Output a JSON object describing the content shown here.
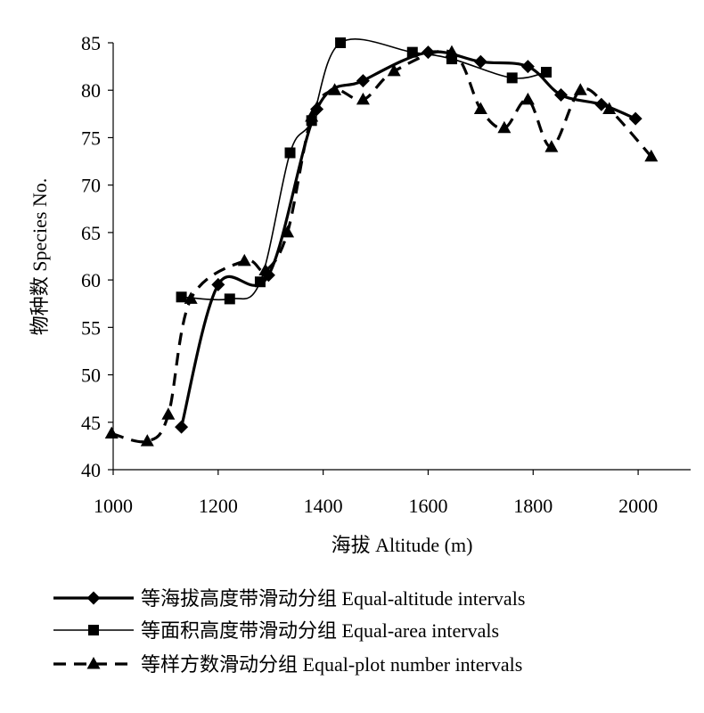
{
  "chart_data": {
    "type": "line",
    "title": "",
    "xlabel": "海拔 Altitude (m)",
    "ylabel": "物种数 Species No.",
    "xlim": [
      1000,
      2100
    ],
    "ylim": [
      40,
      85
    ],
    "xticks": [
      1000,
      1200,
      1400,
      1600,
      1800,
      2000
    ],
    "yticks": [
      40,
      45,
      50,
      55,
      60,
      65,
      70,
      75,
      80,
      85
    ],
    "grid": false,
    "legend_position": "bottom",
    "series": [
      {
        "name": "等海拔高度带滑动分组 Equal-altitude intervals",
        "marker": "diamond",
        "line_style": "solid-thick",
        "points": [
          [
            1130,
            44.5
          ],
          [
            1200,
            59.5
          ],
          [
            1296,
            60.5
          ],
          [
            1388,
            78
          ],
          [
            1476,
            81
          ],
          [
            1600,
            84
          ],
          [
            1700,
            83
          ],
          [
            1790,
            82.5
          ],
          [
            1853,
            79.5
          ],
          [
            1930,
            78.5
          ],
          [
            1995,
            77
          ]
        ]
      },
      {
        "name": "等面积高度带滑动分组 Equal-area intervals",
        "marker": "square",
        "line_style": "solid-thin",
        "points": [
          [
            1130,
            58.2
          ],
          [
            1222,
            58
          ],
          [
            1280,
            59.8
          ],
          [
            1337,
            73.4
          ],
          [
            1378,
            76.8
          ],
          [
            1433,
            85
          ],
          [
            1570,
            84
          ],
          [
            1645,
            83.3
          ],
          [
            1760,
            81.3
          ],
          [
            1825,
            81.9
          ]
        ]
      },
      {
        "name": "等样方数滑动分组 Equal-plot number intervals",
        "marker": "triangle",
        "line_style": "dashed-thick",
        "points": [
          [
            997,
            43.8
          ],
          [
            1065,
            43
          ],
          [
            1105,
            45.8
          ],
          [
            1148,
            58
          ],
          [
            1250,
            62
          ],
          [
            1290,
            61
          ],
          [
            1332,
            65
          ],
          [
            1378,
            77.2
          ],
          [
            1422,
            80
          ],
          [
            1476,
            79
          ],
          [
            1535,
            82
          ],
          [
            1645,
            84
          ],
          [
            1700,
            78
          ],
          [
            1745,
            76
          ],
          [
            1790,
            79
          ],
          [
            1835,
            74
          ],
          [
            1890,
            80
          ],
          [
            1945,
            78
          ],
          [
            2025,
            73
          ]
        ]
      }
    ]
  }
}
